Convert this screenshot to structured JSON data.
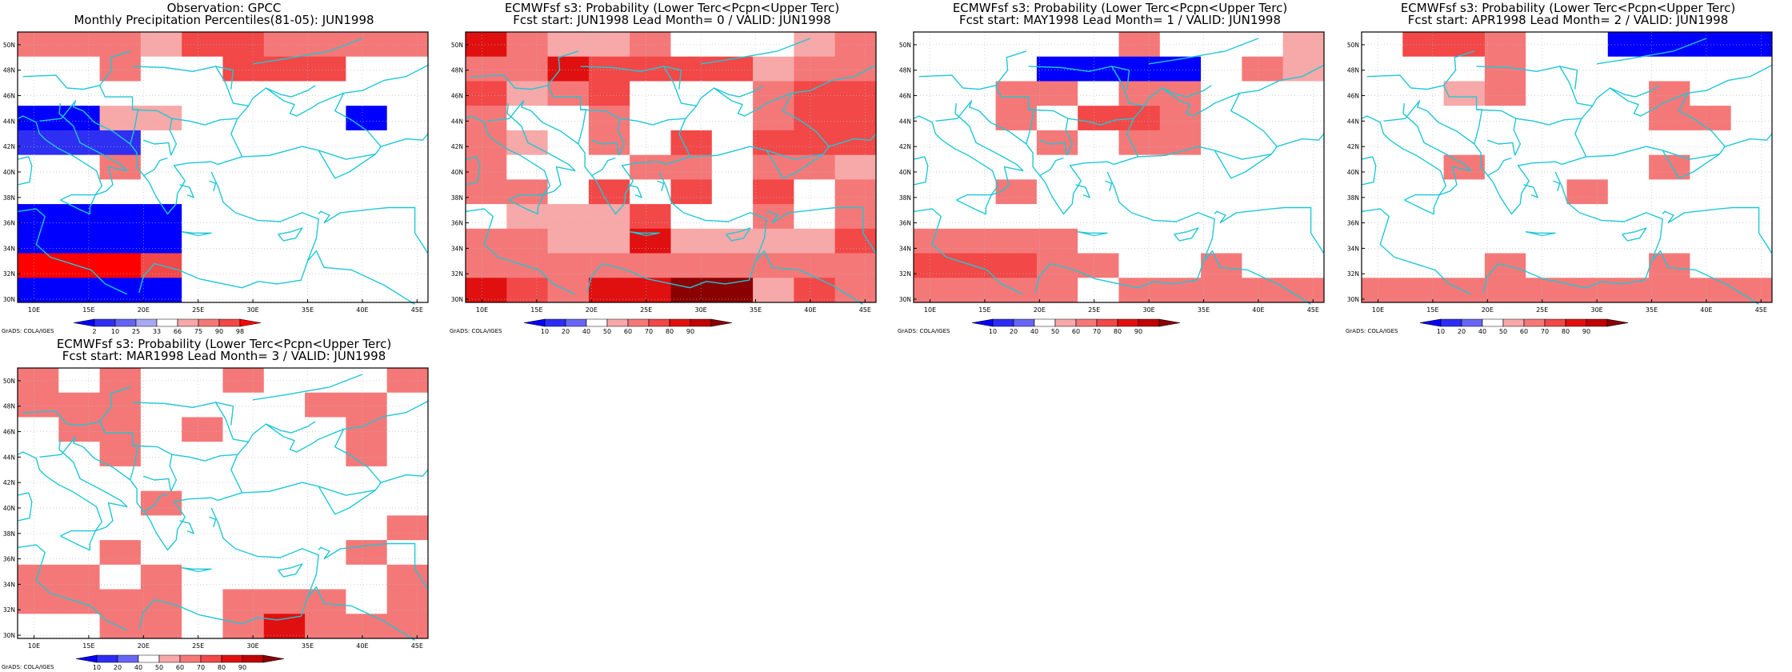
{
  "palettes": {
    "obs": [
      "#0000ff",
      "#2f2ff2",
      "#6464f2",
      "#a8a8f2",
      "#ffffff",
      "#f7a8a8",
      "#f57878",
      "#f24848",
      "#ff0000"
    ],
    "prob": [
      "#0000ff",
      "#2d2df5",
      "#6666f5",
      "#ffffff",
      "#f7a8a8",
      "#f57878",
      "#f24848",
      "#e01010",
      "#c00000",
      "#8b0000"
    ]
  },
  "panels": [
    {
      "title1": "Observation: GPCC",
      "title2": "Monthly Precipitation Percentiles(81-05): JUN1998",
      "credit": "GrADS: COLA/IGES",
      "palette": "obs",
      "cbar_labels": [
        "2",
        "10",
        "25",
        "33",
        "66",
        "75",
        "90",
        "98"
      ],
      "chart_data": {
        "type": "heatmap",
        "x_ticks": [
          "10E",
          "15E",
          "20E",
          "25E",
          "30E",
          "35E",
          "40E",
          "45E"
        ],
        "y_ticks": [
          "30N",
          "32N",
          "34N",
          "36N",
          "38N",
          "40N",
          "42N",
          "44N",
          "46N",
          "48N",
          "50N"
        ],
        "lon_range": [
          8.5,
          46.0
        ],
        "lat_range": [
          29.75,
          51.0
        ],
        "cell_deg": 2.5,
        "grid": [
          "6665776666",
          "4464477744",
          "4444444444",
          "0055444404",
          "1114444444",
          "4464444444",
          "4444444444",
          "0000444444",
          "0000444444",
          "8887444444",
          "0000444444"
        ]
      }
    },
    {
      "title1": "ECMWFsf s3: Probability (Lower Terc<Pcpn<Upper Terc)",
      "title2": "Fcst start: JUN1998  Lead Month= 0 / VALID: JUN1998",
      "credit": "GrADS: COLA/IGES",
      "palette": "prob",
      "cbar_labels": [
        "10",
        "20",
        "40",
        "50",
        "60",
        "70",
        "80",
        "90"
      ],
      "chart_data": {
        "type": "heatmap",
        "x_ticks": [
          "10E",
          "15E",
          "20E",
          "25E",
          "30E",
          "35E",
          "40E",
          "45E"
        ],
        "y_ticks": [
          "30N",
          "32N",
          "34N",
          "36N",
          "38N",
          "40N",
          "42N",
          "44N",
          "46N",
          "48N",
          "50N"
        ],
        "lon_range": [
          8.5,
          46.0
        ],
        "lat_range": [
          29.75,
          51.0
        ],
        "cell_deg": 2.5,
        "grid": [
          "7544533345",
          "5576666455",
          "6456333566",
          "5335333566",
          "5435363666",
          "5333553554",
          "5536363635",
          "3444633535",
          "5544744446",
          "5555555555",
          "7657799465"
        ]
      }
    },
    {
      "title1": "ECMWFsf s3: Probability (Lower Terc<Pcpn<Upper Terc)",
      "title2": "Fcst start: MAY1998  Lead Month= 1 / VALID: JUN1998",
      "credit": "GrADS: COLA/IGES",
      "palette": "prob",
      "cbar_labels": [
        "10",
        "20",
        "40",
        "50",
        "60",
        "70",
        "80",
        "90"
      ],
      "chart_data": {
        "type": "heatmap",
        "x_ticks": [
          "10E",
          "15E",
          "20E",
          "25E",
          "30E",
          "35E",
          "40E",
          "45E"
        ],
        "y_ticks": [
          "30N",
          "32N",
          "34N",
          "36N",
          "38N",
          "40N",
          "42N",
          "44N",
          "46N",
          "48N",
          "50N"
        ],
        "lon_range": [
          8.5,
          46.0
        ],
        "lat_range": [
          29.75,
          51.0
        ],
        "cell_deg": 2.5,
        "grid": [
          "3333353334",
          "3330000354",
          "3355355333",
          "3353665333",
          "3335355333",
          "3333333333",
          "3353333333",
          "3333333333",
          "5555333333",
          "6665533533",
          "5555355555"
        ]
      }
    },
    {
      "title1": "ECMWFsf s3: Probability (Lower Terc<Pcpn<Upper Terc)",
      "title2": "Fcst start: APR1998  Lead Month= 2 / VALID: JUN1998",
      "credit": "GrADS: COLA/IGES",
      "palette": "prob",
      "cbar_labels": [
        "10",
        "20",
        "40",
        "50",
        "60",
        "70",
        "80",
        "90"
      ],
      "chart_data": {
        "type": "heatmap",
        "x_ticks": [
          "10E",
          "15E",
          "20E",
          "25E",
          "30E",
          "35E",
          "40E",
          "45E"
        ],
        "y_ticks": [
          "30N",
          "32N",
          "34N",
          "36N",
          "38N",
          "40N",
          "42N",
          "44N",
          "46N",
          "48N",
          "50N"
        ],
        "lon_range": [
          8.5,
          46.0
        ],
        "lat_range": [
          29.75,
          51.0
        ],
        "cell_deg": 2.5,
        "grid": [
          "3665330000",
          "3335333333",
          "3345333533",
          "3333333553",
          "3333333333",
          "3353333533",
          "3333353333",
          "3333333333",
          "3333333333",
          "3335333533",
          "5555555555"
        ]
      }
    },
    {
      "title1": "ECMWFsf s3: Probability (Lower Terc<Pcpn<Upper Terc)",
      "title2": "Fcst start: MAR1998  Lead Month= 3 / VALID: JUN1998",
      "credit": "GrADS: COLA/IGES",
      "palette": "prob",
      "cbar_labels": [
        "10",
        "20",
        "40",
        "50",
        "60",
        "70",
        "80",
        "90"
      ],
      "chart_data": {
        "type": "heatmap",
        "x_ticks": [
          "10E",
          "15E",
          "20E",
          "25E",
          "30E",
          "35E",
          "40E",
          "45E"
        ],
        "y_ticks": [
          "30N",
          "32N",
          "34N",
          "36N",
          "38N",
          "40N",
          "42N",
          "44N",
          "46N",
          "48N",
          "50N"
        ],
        "lon_range": [
          8.5,
          46.0
        ],
        "lat_range": [
          29.75,
          51.0
        ],
        "cell_deg": 2.5,
        "grid": [
          "5353353335",
          "5553333553",
          "3553533353",
          "3353333353",
          "3333333333",
          "3335333333",
          "3333333335",
          "3353333353",
          "5535333335",
          "5555355535",
          "3355357555"
        ]
      }
    }
  ]
}
